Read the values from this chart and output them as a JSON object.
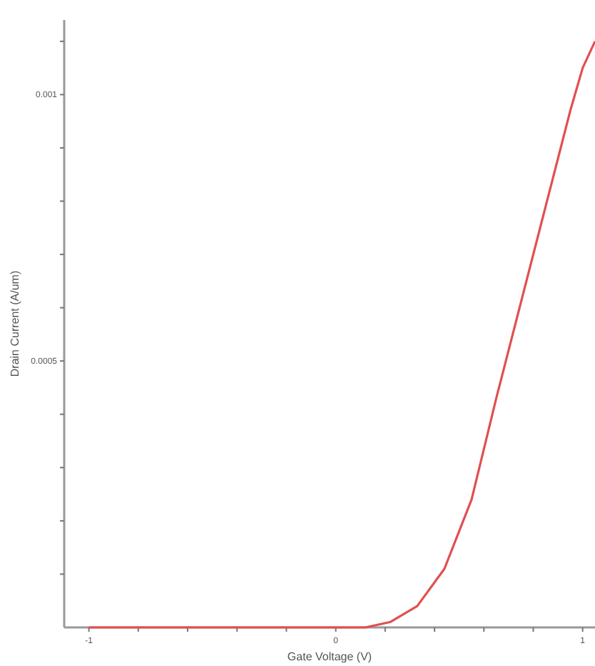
{
  "chart_data": {
    "type": "line",
    "xlabel": "Gate Voltage (V)",
    "ylabel": "Drain Current (A/um)",
    "x": [
      -1,
      -0.5,
      0,
      0.12,
      0.22,
      0.33,
      0.44,
      0.55,
      0.65,
      0.75,
      0.85,
      0.95,
      1,
      1.05
    ],
    "series": [
      {
        "color": "#e05050",
        "values": [
          0,
          0,
          0,
          0,
          1e-05,
          4e-05,
          0.00011,
          0.00024,
          0.00043,
          0.00061,
          0.00079,
          0.00097,
          0.00105,
          0.0011
        ]
      }
    ],
    "xlim": [
      -1.1,
      1.05
    ],
    "ylim": [
      0,
      0.00114
    ],
    "xticks": [
      -1,
      {
        "value": -0.8,
        "label": null
      },
      {
        "value": -0.6,
        "label": null
      },
      {
        "value": -0.4,
        "label": null
      },
      {
        "value": -0.2,
        "label": null
      },
      0,
      {
        "value": 0.2,
        "label": null
      },
      {
        "value": 0.4,
        "label": null
      },
      {
        "value": 0.6,
        "label": null
      },
      {
        "value": 0.8,
        "label": null
      },
      1
    ],
    "yticks": [
      {
        "value": 0.0001,
        "label": null
      },
      {
        "value": 0.0002,
        "label": null
      },
      {
        "value": 0.0003,
        "label": null
      },
      {
        "value": 0.0004,
        "label": null
      },
      0.0005,
      {
        "value": 0.0006,
        "label": null
      },
      {
        "value": 0.0007,
        "label": null
      },
      {
        "value": 0.0008,
        "label": null
      },
      {
        "value": 0.0009,
        "label": null
      },
      0.001,
      {
        "value": 0.0011,
        "label": null
      }
    ],
    "grid": false,
    "marker": "none",
    "line_style": "solid"
  }
}
